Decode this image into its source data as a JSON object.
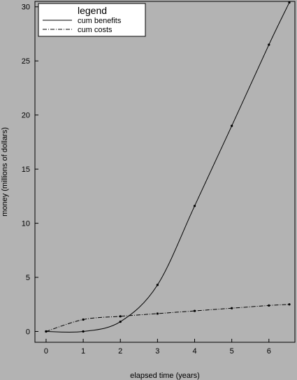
{
  "chart_data": {
    "type": "line",
    "xlabel": "elapsed time (years)",
    "ylabel": "money (millions of dollars)",
    "xlim": [
      -0.3,
      6.7
    ],
    "ylim": [
      -1.0,
      30.5
    ],
    "x_ticks": [
      0,
      1,
      2,
      3,
      4,
      5,
      6
    ],
    "y_ticks": [
      0,
      5,
      10,
      15,
      20,
      25,
      30
    ],
    "grid": false,
    "legend": {
      "title": "legend",
      "placement": "top-left"
    },
    "series": [
      {
        "name": "cum benefits",
        "style": "solid",
        "x": [
          0,
          1,
          2,
          3,
          4,
          5,
          6,
          6.55
        ],
        "y": [
          0,
          0,
          0.9,
          4.3,
          11.6,
          19.0,
          26.5,
          30.4
        ]
      },
      {
        "name": "cum costs",
        "style": "dashdot",
        "x": [
          0,
          1,
          2,
          3,
          4,
          5,
          6,
          6.55
        ],
        "y": [
          0,
          1.1,
          1.4,
          1.65,
          1.9,
          2.15,
          2.4,
          2.5
        ]
      }
    ]
  }
}
